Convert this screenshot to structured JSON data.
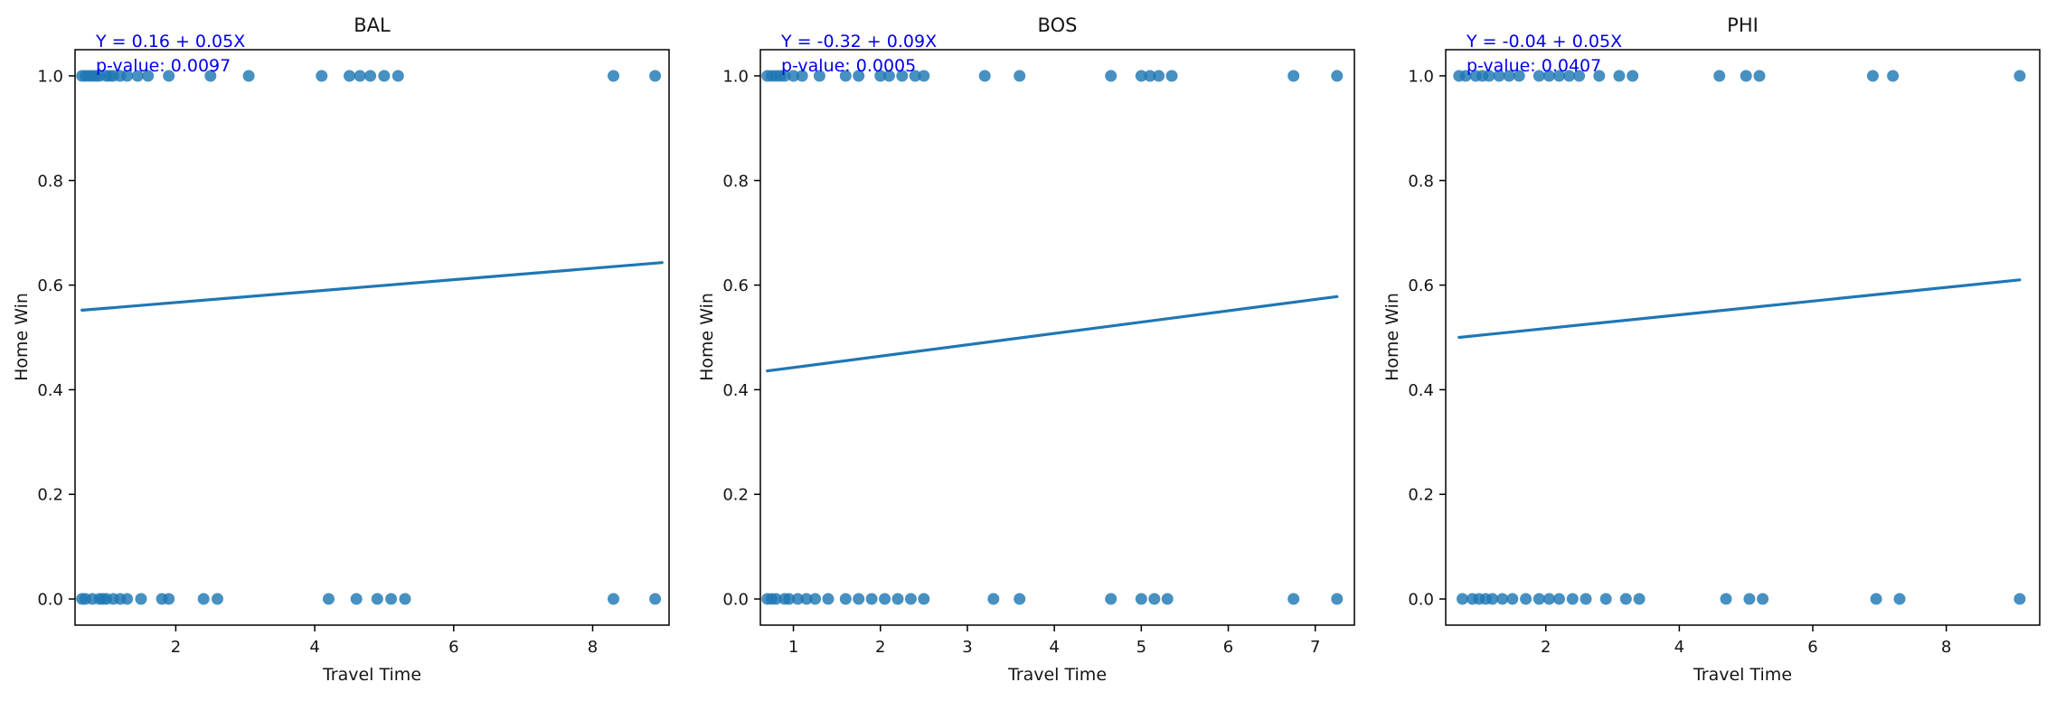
{
  "chart_data": [
    {
      "type": "scatter",
      "title": "BAL",
      "xlabel": "Travel Time",
      "ylabel": "Home Win",
      "annotation": {
        "equation": "Y = 0.16 + 0.05X",
        "pvalue": "p-value: 0.0097",
        "color": "#0000ee"
      },
      "xlim": [
        0.55,
        9.1
      ],
      "ylim": [
        -0.05,
        1.05
      ],
      "xticks": [
        2,
        4,
        6,
        8
      ],
      "yticks": [
        0.0,
        0.2,
        0.4,
        0.6,
        0.8,
        1.0
      ],
      "point_color": "#1f77b4",
      "line_color": "#1f77b4",
      "regression_line": {
        "x1": 0.65,
        "y1": 0.552,
        "x2": 9.0,
        "y2": 0.643
      },
      "scatter_x_win": [
        0.65,
        0.7,
        0.75,
        0.8,
        0.85,
        0.9,
        1.0,
        1.05,
        1.1,
        1.2,
        1.3,
        1.45,
        1.6,
        1.9,
        2.5,
        3.05,
        4.1,
        4.5,
        4.65,
        4.8,
        5.0,
        5.2,
        8.3,
        8.9
      ],
      "scatter_x_loss": [
        0.65,
        0.7,
        0.8,
        0.9,
        0.95,
        1.0,
        1.1,
        1.2,
        1.3,
        1.5,
        1.8,
        1.9,
        2.4,
        2.6,
        4.2,
        4.6,
        4.9,
        5.1,
        5.3,
        8.3,
        8.9
      ],
      "win_value": 1,
      "loss_value": 0
    },
    {
      "type": "scatter",
      "title": "BOS",
      "xlabel": "Travel Time",
      "ylabel": "Home Win",
      "annotation": {
        "equation": "Y = -0.32 + 0.09X",
        "pvalue": "p-value: 0.0005",
        "color": "#0000ee"
      },
      "xlim": [
        0.62,
        7.45
      ],
      "ylim": [
        -0.05,
        1.05
      ],
      "xticks": [
        1,
        2,
        3,
        4,
        5,
        6,
        7
      ],
      "yticks": [
        0.0,
        0.2,
        0.4,
        0.6,
        0.8,
        1.0
      ],
      "point_color": "#1f77b4",
      "line_color": "#1f77b4",
      "regression_line": {
        "x1": 0.7,
        "y1": 0.436,
        "x2": 7.25,
        "y2": 0.578
      },
      "scatter_x_win": [
        0.7,
        0.75,
        0.8,
        0.85,
        0.9,
        1.0,
        1.1,
        1.3,
        1.6,
        1.75,
        2.0,
        2.1,
        2.25,
        2.4,
        2.5,
        3.2,
        3.6,
        4.65,
        5.0,
        5.1,
        5.2,
        5.35,
        6.75,
        7.25
      ],
      "scatter_x_loss": [
        0.7,
        0.75,
        0.8,
        0.9,
        0.95,
        1.05,
        1.15,
        1.25,
        1.4,
        1.6,
        1.75,
        1.9,
        2.05,
        2.2,
        2.35,
        2.5,
        3.3,
        3.6,
        4.65,
        5.0,
        5.15,
        5.3,
        6.75,
        7.25
      ],
      "win_value": 1,
      "loss_value": 0
    },
    {
      "type": "scatter",
      "title": "PHI",
      "xlabel": "Travel Time",
      "ylabel": "Home Win",
      "annotation": {
        "equation": "Y = -0.04 + 0.05X",
        "pvalue": "p-value: 0.0407",
        "color": "#0000ee"
      },
      "xlim": [
        0.5,
        9.4
      ],
      "ylim": [
        -0.05,
        1.05
      ],
      "xticks": [
        2,
        4,
        6,
        8
      ],
      "yticks": [
        0.0,
        0.2,
        0.4,
        0.6,
        0.8,
        1.0
      ],
      "point_color": "#1f77b4",
      "line_color": "#1f77b4",
      "regression_line": {
        "x1": 0.7,
        "y1": 0.5,
        "x2": 9.1,
        "y2": 0.61
      },
      "scatter_x_win": [
        0.7,
        0.8,
        0.95,
        1.05,
        1.15,
        1.3,
        1.45,
        1.6,
        1.9,
        2.05,
        2.2,
        2.35,
        2.5,
        2.8,
        3.1,
        3.3,
        4.6,
        5.0,
        5.2,
        6.9,
        7.2,
        9.1
      ],
      "scatter_x_loss": [
        0.75,
        0.9,
        1.0,
        1.1,
        1.2,
        1.35,
        1.5,
        1.7,
        1.9,
        2.05,
        2.2,
        2.4,
        2.6,
        2.9,
        3.2,
        3.4,
        4.7,
        5.05,
        5.25,
        6.95,
        7.3,
        9.1
      ],
      "win_value": 1,
      "loss_value": 0
    }
  ]
}
